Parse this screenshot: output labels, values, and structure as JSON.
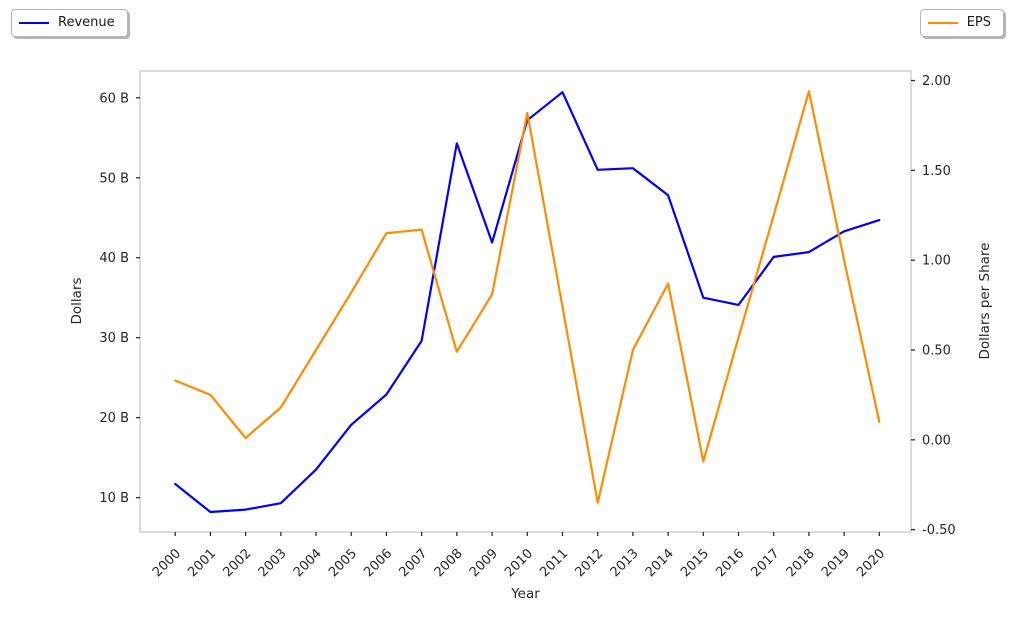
{
  "figure": {
    "background": "#ffffff",
    "legends": [
      {
        "label": "Revenue",
        "color": "#0000ff",
        "position": "top-left"
      },
      {
        "label": "EPS",
        "color": "#ff8c00",
        "position": "top-right"
      }
    ]
  },
  "chart_data": {
    "type": "line",
    "title": "",
    "xlabel": "Year",
    "ylabel_left": "Dollars",
    "ylabel_right": "Dollars per Share",
    "x": [
      2000,
      2001,
      2002,
      2003,
      2004,
      2005,
      2006,
      2007,
      2008,
      2009,
      2010,
      2011,
      2012,
      2013,
      2014,
      2015,
      2016,
      2017,
      2018,
      2019,
      2020
    ],
    "x_tick_labels": [
      "2000",
      "2001",
      "2002",
      "2003",
      "2004",
      "2005",
      "2006",
      "2007",
      "2008",
      "2009",
      "2010",
      "2011",
      "2012",
      "2013",
      "2014",
      "2015",
      "2016",
      "2017",
      "2018",
      "2019",
      "2020"
    ],
    "series": [
      {
        "name": "Revenue",
        "axis": "left",
        "unit": "billions of dollars",
        "color": "#0000ff",
        "values": [
          11.7,
          8.2,
          8.5,
          9.3,
          13.5,
          19.1,
          22.9,
          29.6,
          54.3,
          41.9,
          57.2,
          60.7,
          51.0,
          51.2,
          47.8,
          35.0,
          34.1,
          40.1,
          40.7,
          43.3,
          44.7
        ]
      },
      {
        "name": "EPS",
        "axis": "right",
        "unit": "dollars per share",
        "color": "#ff8c00",
        "values": [
          0.33,
          0.25,
          0.01,
          0.18,
          0.5,
          0.82,
          1.15,
          1.17,
          0.49,
          0.81,
          1.82,
          0.74,
          -0.35,
          0.5,
          0.87,
          -0.12,
          0.57,
          1.25,
          1.94,
          1.0,
          0.1
        ]
      }
    ],
    "left_ticks": {
      "values": [
        10,
        20,
        30,
        40,
        50,
        60
      ],
      "labels": [
        "10 B",
        "20 B",
        "30 B",
        "40 B",
        "50 B",
        "60 B"
      ]
    },
    "right_ticks": {
      "values": [
        -0.5,
        0.0,
        0.5,
        1.0,
        1.5,
        2.0
      ],
      "labels": [
        "-0.50",
        "0.00",
        "0.50",
        "1.00",
        "1.50",
        "2.00"
      ]
    },
    "xlim": [
      1999.0,
      2020.9
    ],
    "ylim_left": [
      5.7,
      63.35
    ],
    "ylim_right": [
      -0.513,
      2.053
    ],
    "grid": false,
    "legend_position": "outside-top"
  }
}
